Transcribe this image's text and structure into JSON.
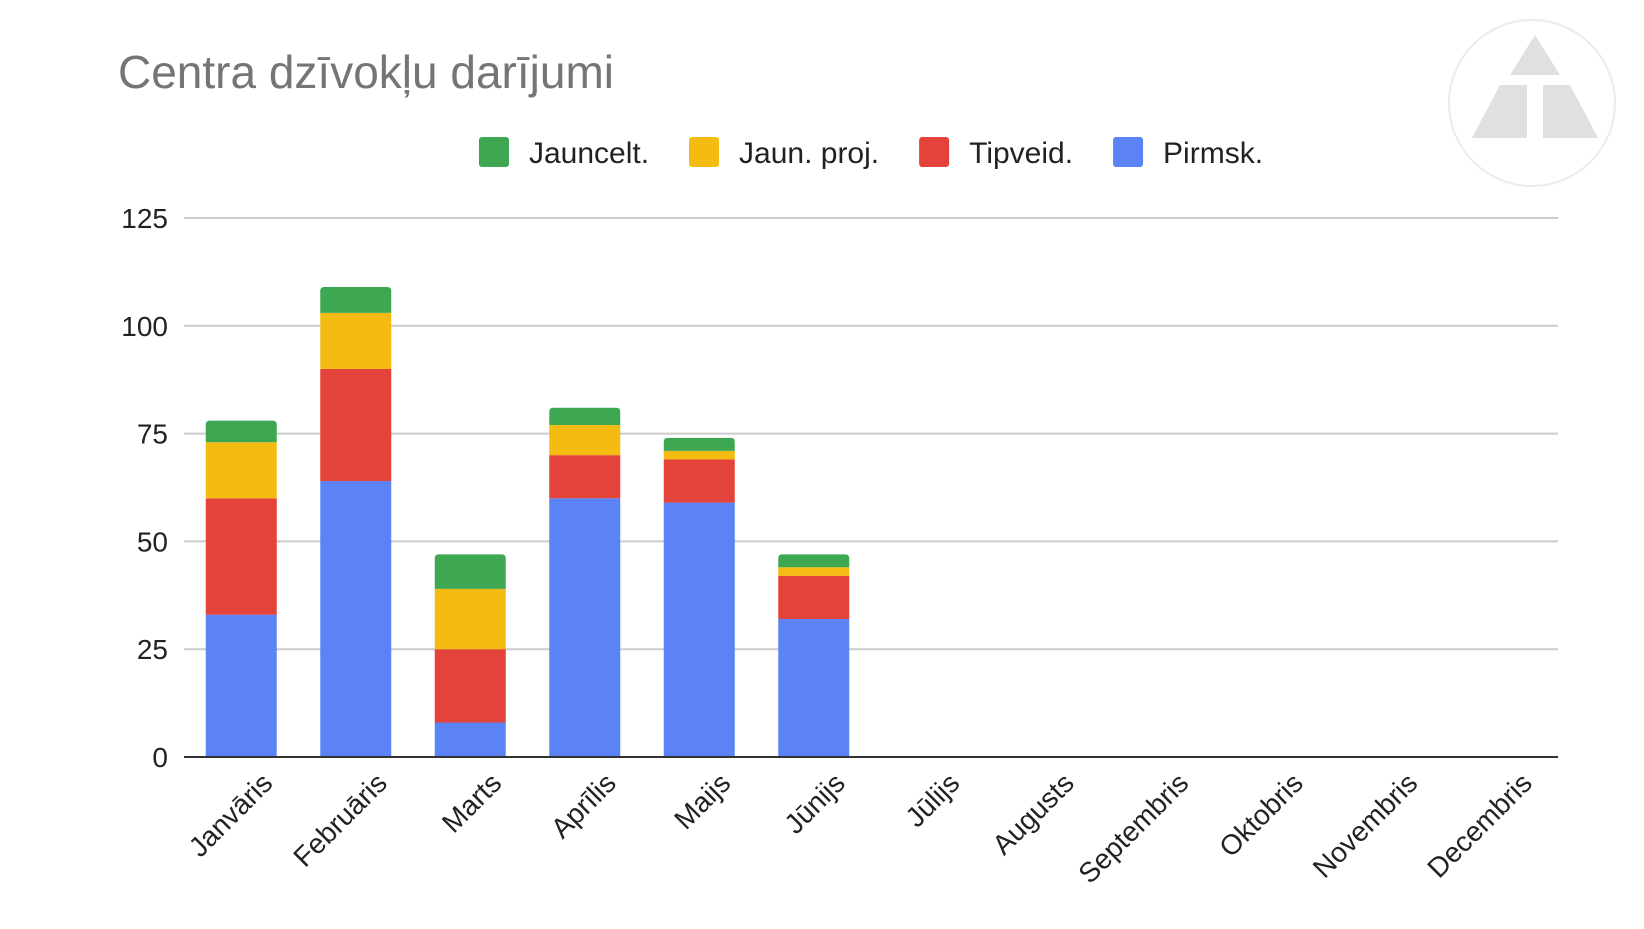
{
  "chart_data": {
    "type": "bar",
    "stacked": true,
    "title": "Centra dzīvokļu darījumi",
    "xlabel": "",
    "ylabel": "",
    "ylim": [
      0,
      125
    ],
    "yticks": [
      "0",
      "25",
      "50",
      "75",
      "100",
      "125"
    ],
    "grid": true,
    "legend_position": "top",
    "categories": [
      "Janvāris",
      "Februāris",
      "Marts",
      "Aprīlis",
      "Maijs",
      "Jūnijs",
      "Jūlijs",
      "Augusts",
      "Septembris",
      "Oktobris",
      "Novembris",
      "Decembris"
    ],
    "series": [
      {
        "name": "Pirmsk.",
        "color": "#5b83f6",
        "values": [
          33,
          64,
          8,
          60,
          59,
          32,
          0,
          0,
          0,
          0,
          0,
          0
        ]
      },
      {
        "name": "Tipveid.",
        "color": "#e3433a",
        "values": [
          27,
          26,
          17,
          10,
          10,
          10,
          0,
          0,
          0,
          0,
          0,
          0
        ]
      },
      {
        "name": "Jaun. proj.",
        "color": "#f4bc12",
        "values": [
          13,
          13,
          14,
          7,
          2,
          2,
          0,
          0,
          0,
          0,
          0,
          0
        ]
      },
      {
        "name": "Jauncelt.",
        "color": "#3ea752",
        "values": [
          5,
          6,
          8,
          4,
          3,
          3,
          0,
          0,
          0,
          0,
          0,
          0
        ]
      }
    ],
    "legend_order": [
      "Jauncelt.",
      "Jaun. proj.",
      "Tipveid.",
      "Pirmsk."
    ]
  },
  "watermark": {
    "icon": "triangle-logo-icon",
    "color": "#e0e0e0"
  }
}
